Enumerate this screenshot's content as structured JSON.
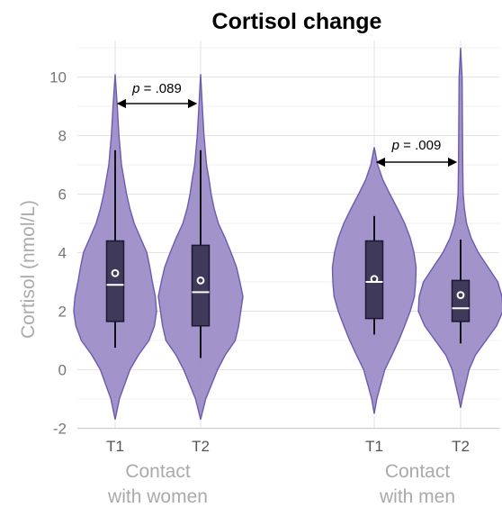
{
  "chart_data": {
    "type": "violin",
    "title": "Cortisol change",
    "ylabel": "Cortisol (nmol/L)",
    "xlabel": "",
    "ylim": [
      -2,
      11
    ],
    "yticks": [
      "10",
      "8",
      "6",
      "4",
      "2",
      "0",
      "-2"
    ],
    "grid": true,
    "color": "#9d8dc8",
    "groups": [
      {
        "label_line1": "Contact",
        "label_line2": "with women",
        "comparison": {
          "p_prefix": "p",
          "p_value": " = .089"
        },
        "series": [
          {
            "name": "T1",
            "min": 0.75,
            "q1": 1.65,
            "median": 2.9,
            "q3": 4.4,
            "max": 7.5,
            "mean": 3.3,
            "violin_range": [
              -1.7,
              10.1
            ],
            "density": [
              [
                -1.7,
                0.0
              ],
              [
                -1.0,
                0.1
              ],
              [
                0.0,
                0.35
              ],
              [
                0.5,
                0.55
              ],
              [
                1.0,
                0.8
              ],
              [
                1.5,
                0.93
              ],
              [
                2.0,
                0.98
              ],
              [
                2.5,
                0.95
              ],
              [
                3.0,
                0.88
              ],
              [
                3.5,
                0.82
              ],
              [
                4.0,
                0.75
              ],
              [
                4.5,
                0.6
              ],
              [
                5.0,
                0.45
              ],
              [
                5.5,
                0.35
              ],
              [
                6.0,
                0.27
              ],
              [
                6.5,
                0.21
              ],
              [
                7.0,
                0.15
              ],
              [
                8.0,
                0.09
              ],
              [
                9.0,
                0.05
              ],
              [
                10.1,
                0.0
              ]
            ]
          },
          {
            "name": "T2",
            "min": 0.4,
            "q1": 1.5,
            "median": 2.65,
            "q3": 4.25,
            "max": 7.5,
            "mean": 3.05,
            "violin_range": [
              -1.7,
              10.1
            ],
            "density": [
              [
                -1.7,
                0.0
              ],
              [
                -1.0,
                0.12
              ],
              [
                0.0,
                0.4
              ],
              [
                0.5,
                0.58
              ],
              [
                1.0,
                0.82
              ],
              [
                1.5,
                0.9
              ],
              [
                2.0,
                0.95
              ],
              [
                2.5,
                1.0
              ],
              [
                3.0,
                0.93
              ],
              [
                3.5,
                0.85
              ],
              [
                4.0,
                0.72
              ],
              [
                4.5,
                0.58
              ],
              [
                5.0,
                0.42
              ],
              [
                5.5,
                0.32
              ],
              [
                6.0,
                0.25
              ],
              [
                6.5,
                0.2
              ],
              [
                7.0,
                0.14
              ],
              [
                8.0,
                0.08
              ],
              [
                9.0,
                0.04
              ],
              [
                10.1,
                0.0
              ]
            ]
          }
        ]
      },
      {
        "label_line1": "Contact",
        "label_line2": "with men",
        "comparison": {
          "p_prefix": "p",
          "p_value": " = .009"
        },
        "series": [
          {
            "name": "T1",
            "min": 1.2,
            "q1": 1.75,
            "median": 3.0,
            "q3": 4.4,
            "max": 5.25,
            "mean": 3.1,
            "violin_range": [
              -1.5,
              7.6
            ],
            "density": [
              [
                -1.5,
                0.0
              ],
              [
                -1.0,
                0.06
              ],
              [
                0.0,
                0.25
              ],
              [
                0.5,
                0.42
              ],
              [
                1.0,
                0.58
              ],
              [
                1.5,
                0.72
              ],
              [
                2.0,
                0.85
              ],
              [
                2.5,
                0.95
              ],
              [
                3.0,
                0.98
              ],
              [
                3.5,
                0.99
              ],
              [
                4.0,
                0.94
              ],
              [
                4.5,
                0.85
              ],
              [
                5.0,
                0.72
              ],
              [
                5.5,
                0.55
              ],
              [
                6.0,
                0.37
              ],
              [
                6.5,
                0.2
              ],
              [
                7.0,
                0.08
              ],
              [
                7.6,
                0.0
              ]
            ]
          },
          {
            "name": "T2",
            "min": 0.9,
            "q1": 1.65,
            "median": 2.1,
            "q3": 3.05,
            "max": 4.45,
            "mean": 2.55,
            "violin_range": [
              -1.3,
              11.0
            ],
            "density": [
              [
                -1.3,
                0.0
              ],
              [
                -1.0,
                0.04
              ],
              [
                0.0,
                0.2
              ],
              [
                0.5,
                0.35
              ],
              [
                1.0,
                0.6
              ],
              [
                1.5,
                0.85
              ],
              [
                2.0,
                1.0
              ],
              [
                2.5,
                0.98
              ],
              [
                3.0,
                0.88
              ],
              [
                3.5,
                0.65
              ],
              [
                4.0,
                0.42
              ],
              [
                4.5,
                0.25
              ],
              [
                5.0,
                0.14
              ],
              [
                5.5,
                0.09
              ],
              [
                6.0,
                0.06
              ],
              [
                7.0,
                0.05
              ],
              [
                8.0,
                0.045
              ],
              [
                9.0,
                0.04
              ],
              [
                10.0,
                0.035
              ],
              [
                11.0,
                0.0
              ]
            ]
          }
        ]
      }
    ]
  }
}
